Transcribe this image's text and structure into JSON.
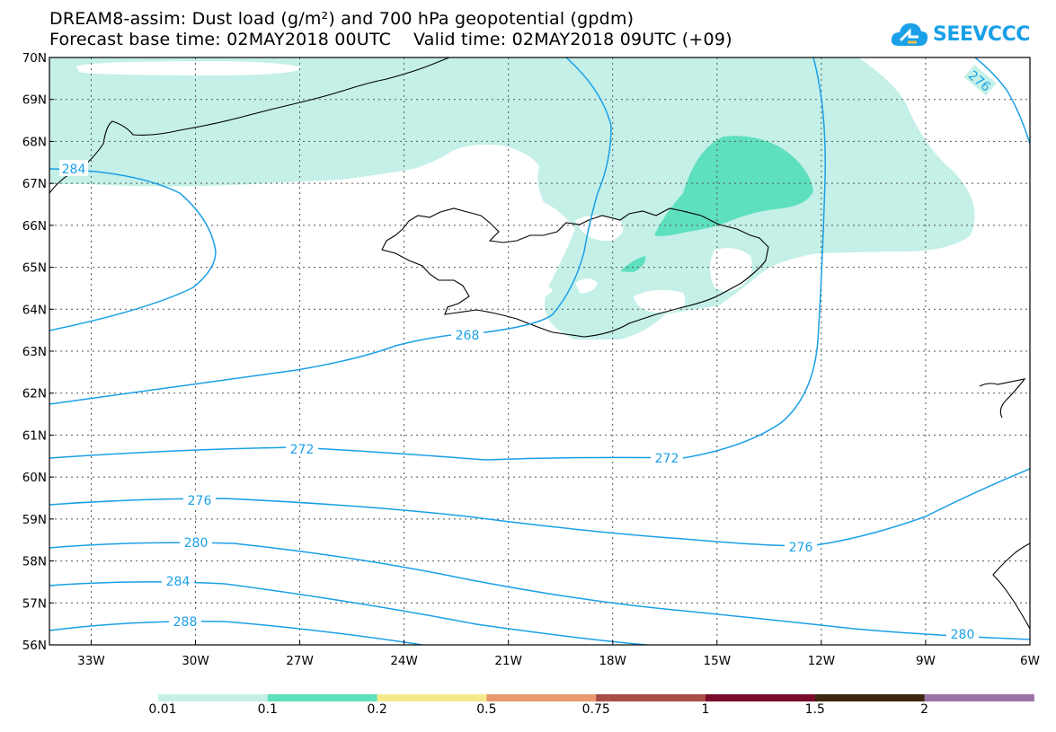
{
  "title": {
    "line1": "DREAM8-assim: Dust load (g/m²) and 700 hPa geopotential (gpdm)",
    "line2": "Forecast base time: 02MAY2018 00UTC    Valid time: 02MAY2018 09UTC (+09)"
  },
  "logo": {
    "text": "SEEVCCC",
    "icon": "cloud-icon"
  },
  "axes": {
    "lat_labels": [
      "70N",
      "69N",
      "68N",
      "67N",
      "66N",
      "65N",
      "64N",
      "63N",
      "62N",
      "61N",
      "60N",
      "59N",
      "58N",
      "57N",
      "56N"
    ],
    "lon_labels": [
      "33W",
      "30W",
      "27W",
      "24W",
      "21W",
      "18W",
      "15W",
      "12W",
      "9W",
      "6W"
    ],
    "lat_range": [
      56,
      70
    ],
    "lon_range": [
      -34.2,
      -6
    ],
    "grid": "dotted"
  },
  "contours": {
    "color": "#1aa0e6",
    "labels": [
      "284",
      "268",
      "272",
      "272",
      "276",
      "276",
      "280",
      "284",
      "288",
      "280",
      "276"
    ]
  },
  "legend": {
    "colors": [
      "#c4f0e8",
      "#5ee0bc",
      "#f6e98a",
      "#e89a6e",
      "#a94e46",
      "#7a0b2a",
      "#3c2810",
      "#9a74a8"
    ],
    "labels": [
      "0.01",
      "0.1",
      "0.2",
      "0.5",
      "0.75",
      "1",
      "1.5",
      "2"
    ]
  },
  "colors": {
    "dust_light": "#c4f0e8",
    "dust_mid": "#5ee0bc",
    "contour": "#1aa0e6"
  }
}
